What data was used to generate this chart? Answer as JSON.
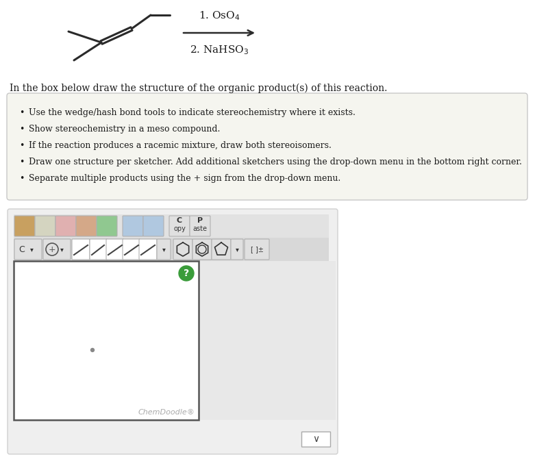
{
  "background_color": "#ffffff",
  "instruction_text": "In the box below draw the structure of the organic product(s) of this reaction.",
  "bullet_points": [
    "Use the wedge/hash bond tools to indicate stereochemistry where it exists.",
    "Show stereochemistry in a meso compound.",
    "If the reaction produces a racemic mixture, draw both stereoisomers.",
    "Draw one structure per sketcher. Add additional sketchers using the drop-down menu in the bottom right corner.",
    "Separate multiple products using the + sign from the drop-down menu."
  ],
  "chemdoodle_label": "ChemDoodle®",
  "fig_width": 7.81,
  "fig_height": 6.73,
  "dpi": 100,
  "mol_color": "#2a2a2a",
  "arrow_color": "#2a2a2a",
  "text_color": "#1a1a1a",
  "bullet_box_bg": "#f5f5ef",
  "bullet_box_edge": "#c8c8c8",
  "toolbar_bg": "#e2e2e2",
  "toolbar_btn_face": "#e0e0e0",
  "toolbar_btn_edge": "#b0b0b0",
  "draw_area_bg": "#ffffff",
  "draw_area_edge": "#555555",
  "gray_panel_bg": "#e8e8e8",
  "outer_panel_bg": "#efefef",
  "outer_panel_edge": "#d0d0d0",
  "green_circle_color": "#3a9c3a",
  "dot_color": "#888888",
  "chemdoodle_text_color": "#aaaaaa",
  "dropdown_btn_edge": "#aaaaaa"
}
